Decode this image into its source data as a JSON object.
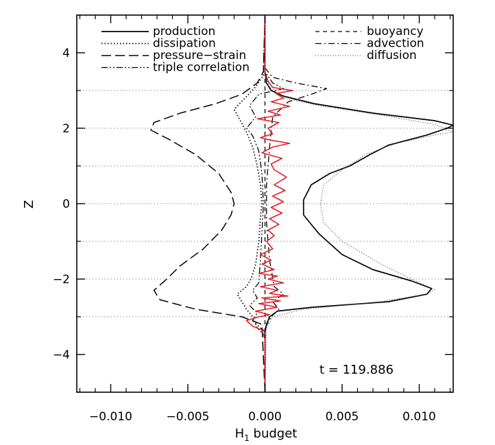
{
  "chart_data": {
    "type": "line",
    "xlabel_main": "H",
    "xlabel_sub": "1",
    "xlabel_rest": " budget",
    "ylabel": "Z",
    "xlim": [
      -0.0122,
      0.0122
    ],
    "ylim": [
      -5,
      5
    ],
    "xticks": [
      -0.01,
      -0.005,
      0.0,
      0.005,
      0.01
    ],
    "xtick_labels": [
      "−0.010",
      "−0.005",
      "0.000",
      "0.005",
      "0.010"
    ],
    "yticks": [
      -4,
      -2,
      0,
      2,
      4
    ],
    "ytick_labels": [
      "−4",
      "−2",
      "0",
      "2",
      "4"
    ],
    "grid_y": [
      -3,
      -1,
      1,
      3,
      2,
      0,
      -2
    ],
    "annotation": "t = 119.886",
    "legend_left": [
      {
        "name": "production",
        "style": "solid"
      },
      {
        "name": "dissipation",
        "style": "dotted"
      },
      {
        "name": "pressure−strain",
        "style": "longdash"
      },
      {
        "name": "triple correlation",
        "style": "dashdotdot"
      }
    ],
    "legend_right": [
      {
        "name": "buoyancy",
        "style": "dashed"
      },
      {
        "name": "advection",
        "style": "dashdot"
      },
      {
        "name": "diffusion",
        "style": "graydotted"
      }
    ],
    "series": [
      {
        "name": "production",
        "style": "solid",
        "color": "#000000",
        "points": [
          [
            0,
            -5
          ],
          [
            0.0,
            -3.4
          ],
          [
            0.0001,
            -3.2
          ],
          [
            0.0003,
            -3.0
          ],
          [
            0.0008,
            -2.85
          ],
          [
            0.003,
            -2.75
          ],
          [
            0.008,
            -2.6
          ],
          [
            0.0105,
            -2.4
          ],
          [
            0.0108,
            -2.25
          ],
          [
            0.0095,
            -2.05
          ],
          [
            0.007,
            -1.75
          ],
          [
            0.005,
            -1.35
          ],
          [
            0.0035,
            -0.8
          ],
          [
            0.0025,
            -0.3
          ],
          [
            0.0025,
            0.1
          ],
          [
            0.003,
            0.5
          ],
          [
            0.0042,
            0.8
          ],
          [
            0.0055,
            1.0
          ],
          [
            0.0068,
            1.3
          ],
          [
            0.008,
            1.55
          ],
          [
            0.0105,
            1.82
          ],
          [
            0.0118,
            2.0
          ],
          [
            0.0122,
            2.08
          ],
          [
            0.011,
            2.2
          ],
          [
            0.007,
            2.4
          ],
          [
            0.0032,
            2.65
          ],
          [
            0.0012,
            2.85
          ],
          [
            0.0004,
            3.0
          ],
          [
            0.0001,
            3.2
          ],
          [
            0.0,
            3.5
          ],
          [
            0,
            5
          ]
        ]
      },
      {
        "name": "diffusion",
        "style": "graydotted",
        "color": "#555555",
        "points": [
          [
            0,
            -5
          ],
          [
            0.0001,
            -3.3
          ],
          [
            0.0005,
            -3.0
          ],
          [
            0.0025,
            -2.8
          ],
          [
            0.0075,
            -2.6
          ],
          [
            0.0105,
            -2.4
          ],
          [
            0.011,
            -2.28
          ],
          [
            0.0095,
            -2.0
          ],
          [
            0.0075,
            -1.6
          ],
          [
            0.005,
            -1.0
          ],
          [
            0.0038,
            -0.5
          ],
          [
            0.0036,
            0.0
          ],
          [
            0.0038,
            0.5
          ],
          [
            0.005,
            0.9
          ],
          [
            0.0065,
            1.3
          ],
          [
            0.0085,
            1.6
          ],
          [
            0.011,
            1.82
          ],
          [
            0.0122,
            1.9
          ],
          [
            0.011,
            2.1
          ],
          [
            0.0075,
            2.35
          ],
          [
            0.0035,
            2.6
          ],
          [
            0.0012,
            2.8
          ],
          [
            0.0003,
            3.1
          ],
          [
            0,
            3.4
          ],
          [
            0,
            5
          ]
        ]
      },
      {
        "name": "pressure−strain",
        "style": "longdash",
        "color": "#000000",
        "points": [
          [
            0,
            -5
          ],
          [
            -0.0002,
            -3.2
          ],
          [
            -0.0015,
            -3.0
          ],
          [
            -0.0045,
            -2.8
          ],
          [
            -0.0068,
            -2.55
          ],
          [
            -0.0072,
            -2.3
          ],
          [
            -0.0065,
            -2.05
          ],
          [
            -0.0055,
            -1.65
          ],
          [
            -0.004,
            -1.2
          ],
          [
            -0.0028,
            -0.7
          ],
          [
            -0.0022,
            -0.3
          ],
          [
            -0.002,
            0.0
          ],
          [
            -0.0022,
            0.3
          ],
          [
            -0.003,
            0.8
          ],
          [
            -0.0045,
            1.3
          ],
          [
            -0.0062,
            1.7
          ],
          [
            -0.0074,
            1.95
          ],
          [
            -0.0072,
            2.15
          ],
          [
            -0.0055,
            2.4
          ],
          [
            -0.0032,
            2.65
          ],
          [
            -0.0015,
            2.9
          ],
          [
            -0.0005,
            3.2
          ],
          [
            -0.0001,
            3.5
          ],
          [
            0,
            5
          ]
        ]
      },
      {
        "name": "dissipation",
        "style": "dotted",
        "color": "#000000",
        "points": [
          [
            0,
            -5
          ],
          [
            0,
            -3.5
          ],
          [
            -0.0005,
            -3.3
          ],
          [
            -0.0008,
            -3.0
          ],
          [
            -0.0012,
            -2.8
          ],
          [
            -0.0015,
            -2.6
          ],
          [
            -0.0018,
            -2.4
          ],
          [
            -0.0012,
            -2.2
          ],
          [
            -0.0009,
            -2.0
          ],
          [
            -0.0006,
            -1.6
          ],
          [
            -0.0004,
            -1.0
          ],
          [
            -0.0003,
            -0.4
          ],
          [
            -0.0002,
            0.0
          ],
          [
            -0.0003,
            0.5
          ],
          [
            -0.0005,
            1.0
          ],
          [
            -0.0008,
            1.5
          ],
          [
            -0.0012,
            1.9
          ],
          [
            -0.0016,
            2.2
          ],
          [
            -0.002,
            2.5
          ],
          [
            -0.0013,
            2.8
          ],
          [
            -0.0006,
            3.1
          ],
          [
            -0.0001,
            3.4
          ],
          [
            0,
            5
          ]
        ]
      },
      {
        "name": "triple correlation",
        "style": "dashdotdot",
        "color": "#000000",
        "points": [
          [
            0,
            -5
          ],
          [
            0,
            -3.4
          ],
          [
            -0.0008,
            -3.1
          ],
          [
            -0.0005,
            -2.9
          ],
          [
            -0.001,
            -2.7
          ],
          [
            -0.0005,
            -2.5
          ],
          [
            -0.0008,
            -2.3
          ],
          [
            -0.0004,
            -2.1
          ],
          [
            -0.0003,
            -1.5
          ],
          [
            -0.0002,
            -0.8
          ],
          [
            -0.0001,
            0.0
          ],
          [
            -0.0002,
            0.8
          ],
          [
            -0.0004,
            1.4
          ],
          [
            -0.0008,
            1.8
          ],
          [
            -0.0012,
            2.0
          ],
          [
            -0.0006,
            2.3
          ],
          [
            -0.001,
            2.6
          ],
          [
            -0.0004,
            2.9
          ],
          [
            0.0012,
            3.05
          ],
          [
            0.0005,
            3.2
          ],
          [
            0,
            3.5
          ],
          [
            0,
            5
          ]
        ]
      },
      {
        "name": "advection",
        "style": "dashdot",
        "color": "#000000",
        "points": [
          [
            0,
            -5
          ],
          [
            0,
            -3.3
          ],
          [
            0.0004,
            -3.0
          ],
          [
            0.0009,
            -2.8
          ],
          [
            0.0005,
            -2.6
          ],
          [
            0.0012,
            -2.4
          ],
          [
            0.0006,
            -2.2
          ],
          [
            0.0003,
            -1.5
          ],
          [
            0.0001,
            -0.5
          ],
          [
            0.0001,
            0.5
          ],
          [
            0.0003,
            1.5
          ],
          [
            0.0005,
            2.3
          ],
          [
            0.0015,
            2.7
          ],
          [
            0.003,
            2.9
          ],
          [
            0.004,
            3.05
          ],
          [
            0.002,
            3.2
          ],
          [
            0.0005,
            3.35
          ],
          [
            0,
            3.6
          ],
          [
            0,
            5
          ]
        ]
      },
      {
        "name": "buoyancy",
        "style": "dashed",
        "color": "#000000",
        "points": [
          [
            0,
            -5
          ],
          [
            0,
            5
          ]
        ]
      },
      {
        "name": "red",
        "style": "solid",
        "color": "#e0202a",
        "points": [
          [
            0,
            -5
          ],
          [
            0,
            -3.6
          ],
          [
            -0.0002,
            -3.35
          ],
          [
            -0.0008,
            -3.25
          ],
          [
            -0.0012,
            -3.1
          ],
          [
            -0.0004,
            -3.0
          ],
          [
            0.0003,
            -2.95
          ],
          [
            -0.0006,
            -2.85
          ],
          [
            0.0008,
            -2.75
          ],
          [
            -0.0004,
            -2.65
          ],
          [
            0.001,
            -2.58
          ],
          [
            -0.0002,
            -2.5
          ],
          [
            0.0015,
            -2.45
          ],
          [
            0.0003,
            -2.38
          ],
          [
            0.0008,
            -2.3
          ],
          [
            -0.0003,
            -2.2
          ],
          [
            0.0012,
            -2.1
          ],
          [
            0.0002,
            -2.0
          ],
          [
            0.0008,
            -1.92
          ],
          [
            -0.0004,
            -1.85
          ],
          [
            0.0006,
            -1.75
          ],
          [
            -0.0002,
            -1.6
          ],
          [
            0.0004,
            -1.5
          ],
          [
            -0.0003,
            -1.35
          ],
          [
            0.0005,
            -1.2
          ],
          [
            0.0001,
            -1.0
          ],
          [
            0.0006,
            -0.85
          ],
          [
            0.0002,
            -0.7
          ],
          [
            0.0009,
            -0.55
          ],
          [
            0.0003,
            -0.4
          ],
          [
            0.0011,
            -0.25
          ],
          [
            0.0004,
            -0.1
          ],
          [
            0.0012,
            0.05
          ],
          [
            0.0005,
            0.2
          ],
          [
            0.0013,
            0.35
          ],
          [
            0.0006,
            0.5
          ],
          [
            0.0014,
            0.7
          ],
          [
            0.0006,
            0.9
          ],
          [
            0.0004,
            1.05
          ],
          [
            0.0011,
            1.2
          ],
          [
            -0.0002,
            1.35
          ],
          [
            0.0005,
            1.5
          ],
          [
            0.0016,
            1.6
          ],
          [
            0.0004,
            1.68
          ],
          [
            -0.0003,
            1.75
          ],
          [
            0.0005,
            1.85
          ],
          [
            0.0002,
            2.0
          ],
          [
            0.0009,
            2.15
          ],
          [
            -0.0005,
            2.25
          ],
          [
            0.001,
            2.35
          ],
          [
            0.0002,
            2.45
          ],
          [
            0.0016,
            2.58
          ],
          [
            0.0004,
            2.7
          ],
          [
            0.0012,
            2.8
          ],
          [
            0.0007,
            2.92
          ],
          [
            0.0018,
            3.0
          ],
          [
            0.0005,
            3.08
          ],
          [
            0.0002,
            3.25
          ],
          [
            0,
            3.5
          ],
          [
            0,
            5
          ]
        ]
      }
    ]
  }
}
